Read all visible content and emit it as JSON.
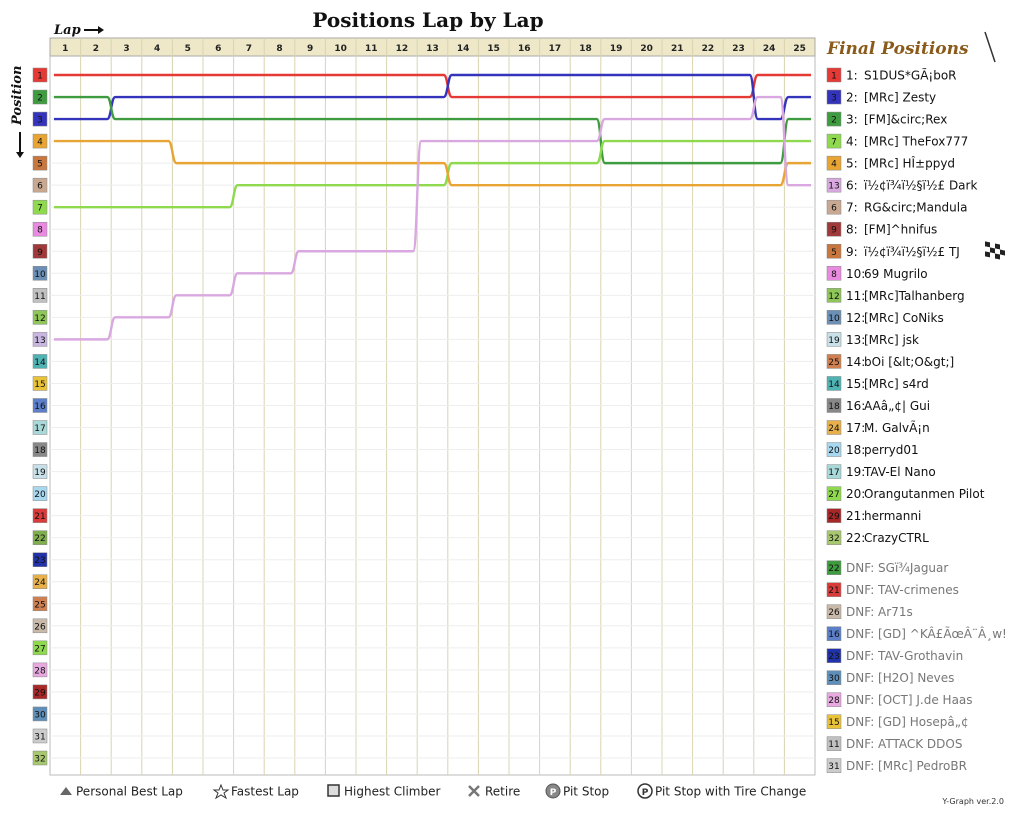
{
  "chart_data": {
    "type": "line",
    "title": "Positions Lap by Lap",
    "x_axis_label": "Lap",
    "y_axis_label": "Position",
    "laps": [
      1,
      2,
      3,
      4,
      5,
      6,
      7,
      8,
      9,
      10,
      11,
      12,
      13,
      14,
      15,
      16,
      17,
      18,
      19,
      20,
      21,
      22,
      23,
      24,
      25
    ],
    "positions": [
      1,
      2,
      3,
      4,
      5,
      6,
      7,
      8,
      9,
      10,
      11,
      12,
      13,
      14,
      15,
      16,
      17,
      18,
      19,
      20,
      21,
      22,
      23,
      24,
      25,
      26,
      27,
      28,
      29,
      30,
      31,
      32
    ],
    "position_colors": [
      "#e53935",
      "#3f9b3f",
      "#3333bb",
      "#e8a533",
      "#c8773f",
      "#c9a891",
      "#8fd94f",
      "#e88be0",
      "#a03a3a",
      "#6b8fb5",
      "#c0c0c0",
      "#8ec65a",
      "#c8b6e0",
      "#4fb3b3",
      "#e8c33a",
      "#5b7fc9",
      "#a8d8d8",
      "#888888",
      "#c8e0e8",
      "#a8d8f0",
      "#d93a3a",
      "#7fae4f",
      "#2233aa",
      "#e8b04a",
      "#d08050",
      "#c9b9a9",
      "#8fd94f",
      "#e8a8e0",
      "#a82828",
      "#5f8fb8",
      "#cccccc",
      "#a8c870"
    ],
    "legend_title": "Final Positions",
    "standings": [
      {
        "pos": 1,
        "grid": 1,
        "grid_color": "#e53935",
        "name": "S1DUS*GÃ¡boR"
      },
      {
        "pos": 2,
        "grid": 3,
        "grid_color": "#3333bb",
        "name": "[MRc] Zesty"
      },
      {
        "pos": 3,
        "grid": 2,
        "grid_color": "#3f9b3f",
        "name": "[FM]&circ;Rex"
      },
      {
        "pos": 4,
        "grid": 7,
        "grid_color": "#8fd94f",
        "name": "[MRc] TheFox777"
      },
      {
        "pos": 5,
        "grid": 4,
        "grid_color": "#e8a533",
        "name": "[MRc] HÎ±ppyd"
      },
      {
        "pos": 6,
        "grid": 13,
        "grid_color": "#d9a8e0",
        "name": "ï½¢ï¾ï½§ï½£ Dark"
      },
      {
        "pos": 7,
        "grid": 6,
        "grid_color": "#c9a891",
        "name": "RG&circ;Mandula"
      },
      {
        "pos": 8,
        "grid": 9,
        "grid_color": "#a03a3a",
        "name": "[FM]^hnifus"
      },
      {
        "pos": 9,
        "grid": 5,
        "grid_color": "#c8773f",
        "name": "ï½¢ï¾ï½§ï½£ TJ"
      },
      {
        "pos": 10,
        "grid": 8,
        "grid_color": "#e88be0",
        "name": "69 Mugrilo"
      },
      {
        "pos": 11,
        "grid": 12,
        "grid_color": "#8ec65a",
        "name": "[MRc]Talhanberg"
      },
      {
        "pos": 12,
        "grid": 10,
        "grid_color": "#6b8fb5",
        "name": "[MRc] CoNiks"
      },
      {
        "pos": 13,
        "grid": 19,
        "grid_color": "#c8e0e8",
        "name": "[MRc] jsk"
      },
      {
        "pos": 14,
        "grid": 25,
        "grid_color": "#d08050",
        "name": "bOi [&lt;O&gt;]"
      },
      {
        "pos": 15,
        "grid": 14,
        "grid_color": "#4fb3b3",
        "name": "[MRc] s4rd"
      },
      {
        "pos": 16,
        "grid": 18,
        "grid_color": "#888888",
        "name": "AAâ„¢| Gui"
      },
      {
        "pos": 17,
        "grid": 24,
        "grid_color": "#e8b04a",
        "name": "M. GalvÃ¡n"
      },
      {
        "pos": 18,
        "grid": 20,
        "grid_color": "#a8d8f0",
        "name": "perryd01"
      },
      {
        "pos": 19,
        "grid": 17,
        "grid_color": "#a8d8d8",
        "name": "TAV-El Nano"
      },
      {
        "pos": 20,
        "grid": 27,
        "grid_color": "#8fd94f",
        "name": "Orangutanmen Pilot"
      },
      {
        "pos": 21,
        "grid": 29,
        "grid_color": "#a82828",
        "name": "hermanni"
      },
      {
        "pos": 22,
        "grid": 32,
        "grid_color": "#a8c870",
        "name": "CrazyCTRL"
      }
    ],
    "dnf": [
      {
        "grid": 22,
        "grid_color": "#3f9b3f",
        "name": "DNF: SGï¾Jaguar"
      },
      {
        "grid": 21,
        "grid_color": "#d93a3a",
        "name": "DNF: TAV-crimenes"
      },
      {
        "grid": 26,
        "grid_color": "#c9b9a9",
        "name": "DNF: Ar71s"
      },
      {
        "grid": 16,
        "grid_color": "#5b7fc9",
        "name": "DNF: [GD] ^KÂ£ÃœÂ¨Â¸w!"
      },
      {
        "grid": 23,
        "grid_color": "#2233aa",
        "name": "DNF: TAV-Grothavin"
      },
      {
        "grid": 30,
        "grid_color": "#5f8fb8",
        "name": "DNF: [H2O] Neves"
      },
      {
        "grid": 28,
        "grid_color": "#e8a8e0",
        "name": "DNF: [OCT] J.de Haas"
      },
      {
        "grid": 15,
        "grid_color": "#e8c33a",
        "name": "DNF: [GD] Hosepâ„¢"
      },
      {
        "grid": 11,
        "grid_color": "#c0c0c0",
        "name": "DNF: ATTACK DDOS"
      },
      {
        "grid": 31,
        "grid_color": "#cccccc",
        "name": "DNF: [MRc] PedroBR"
      }
    ],
    "legend_keys": [
      {
        "icon": "triangle",
        "label": "Personal Best Lap"
      },
      {
        "icon": "star",
        "label": "Fastest Lap"
      },
      {
        "icon": "square",
        "label": "Highest Climber"
      },
      {
        "icon": "cross",
        "label": "Retire"
      },
      {
        "icon": "pit-gray",
        "label": "Pit Stop"
      },
      {
        "icon": "pit-outline",
        "label": "Pit Stop with Tire Change"
      }
    ],
    "watermark": "Y-Graph ver.2.0",
    "lines": [
      {
        "name": "S1DUS*GÃ¡boR",
        "color": "#e53935",
        "pos": [
          1,
          1,
          1,
          1,
          1,
          1,
          1,
          1,
          1,
          1,
          1,
          1,
          1,
          2,
          2,
          2,
          2,
          2,
          2,
          2,
          2,
          2,
          2,
          1,
          1
        ]
      },
      {
        "name": "[MRc] Zesty",
        "color": "#3333bb",
        "pos": [
          3,
          3,
          2,
          2,
          2,
          2,
          2,
          2,
          2,
          2,
          2,
          2,
          2,
          1,
          1,
          1,
          1,
          1,
          1,
          1,
          1,
          1,
          1,
          3,
          2
        ]
      },
      {
        "name": "[FM]&circ;Rex",
        "color": "#3f9b3f",
        "pos": [
          2,
          2,
          3,
          3,
          3,
          3,
          3,
          3,
          3,
          3,
          3,
          3,
          3,
          3,
          3,
          3,
          3,
          3,
          5,
          5,
          5,
          5,
          5,
          5,
          3
        ]
      },
      {
        "name": "[MRc] TheFox777",
        "color": "#8fd94f",
        "pos": [
          7,
          7,
          7,
          7,
          7,
          7,
          6,
          6,
          6,
          6,
          6,
          6,
          6,
          5,
          5,
          5,
          5,
          5,
          4,
          4,
          4,
          4,
          4,
          4,
          4
        ]
      },
      {
        "name": "[MRc] HÎ±ppyd",
        "color": "#e8a533",
        "pos": [
          4,
          4,
          4,
          4,
          5,
          5,
          5,
          5,
          5,
          5,
          5,
          5,
          5,
          6,
          6,
          6,
          6,
          6,
          6,
          6,
          6,
          6,
          6,
          6,
          5
        ]
      },
      {
        "name": "ï½¢ï¾ï½§ï½£ Dark",
        "color": "#d9a8e0",
        "pos": [
          13,
          13,
          12,
          12,
          11,
          11,
          10,
          10,
          9,
          9,
          9,
          9,
          4,
          4,
          4,
          4,
          4,
          4,
          3,
          3,
          3,
          3,
          3,
          2,
          6
        ]
      }
    ]
  }
}
